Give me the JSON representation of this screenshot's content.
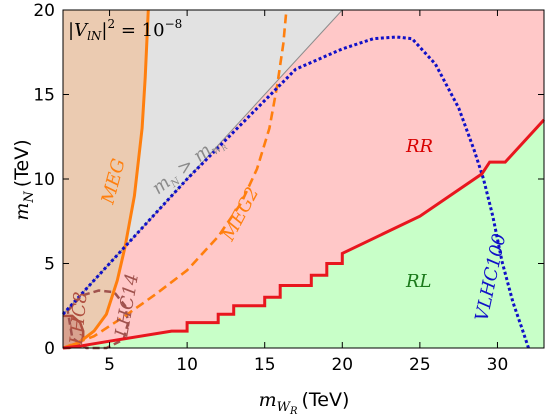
{
  "chart_data": {
    "type": "area",
    "xlim": [
      2,
      33
    ],
    "ylim": [
      0,
      20
    ],
    "xticks": [
      "5",
      "10",
      "15",
      "20",
      "25",
      "30"
    ],
    "yticks": [
      "0",
      "5",
      "10",
      "15",
      "20"
    ],
    "x_tick_values": [
      5,
      10,
      15,
      20,
      25,
      30
    ],
    "y_tick_values": [
      0,
      5,
      10,
      15,
      20
    ],
    "xlabel_main": "m",
    "xlabel_sub_main": "W",
    "xlabel_sub_sub": "R",
    "xlabel_unit": "(TeV)",
    "ylabel_main": "m",
    "ylabel_sub": "N",
    "ylabel_unit": "(TeV)",
    "annotation_mixing": "|V_lN|^2 = 10^-8",
    "annotation_mixing_parts": {
      "v": "|V",
      "sub": "lN",
      "mid": "|",
      "sup2": "2",
      "eq": " = 10",
      "exp": "−8"
    },
    "label_constraint": "m_N > m_W_R",
    "label_constraint_parts": {
      "a": "m",
      "a_sub": "N",
      "gt": " > ",
      "b": "m",
      "b_sub": "W",
      "b_subsub": "R"
    },
    "region_labels": {
      "RR": "RR",
      "RL": "RL"
    },
    "curve_labels": {
      "MEG": "MEG",
      "MEG2": "MEG2",
      "VLHC100": "VLHC100",
      "LHC8": "LHC8",
      "LHC14": "LHC14"
    },
    "colors": {
      "RR_region": "#ffc8c8",
      "RL_region": "#c8ffc8",
      "MEG_region": "#ebcbb1",
      "forbidden_region": "#e2e2e2",
      "boundary": "#e8161e",
      "MEG": "#ff7f0e",
      "VLHC100": "#1010c8",
      "diagonal": "#1010c8",
      "LHC8": "#b05040",
      "LHC14": "#a0524d",
      "RL_text": "#1b7a1b",
      "RR_text": "#d80000"
    },
    "series": [
      {
        "name": "RR/RL boundary",
        "x": [
          2,
          3,
          5,
          9,
          10,
          10,
          12,
          12,
          13,
          13,
          15,
          15,
          16,
          16,
          18,
          18,
          19,
          19,
          20,
          20,
          25,
          29,
          29.5,
          30.5,
          33
        ],
        "y": [
          0,
          0.1,
          0.4,
          1,
          1,
          1.5,
          1.5,
          2,
          2,
          2.5,
          2.5,
          3,
          3,
          3.7,
          3.7,
          4.3,
          4.3,
          5,
          5,
          5.6,
          7.8,
          10.3,
          11,
          11,
          13.5
        ]
      },
      {
        "name": "MEG",
        "x": [
          2,
          3,
          4,
          4.8,
          5.5,
          6.0,
          6.6,
          7.1,
          7.3,
          7.5
        ],
        "y": [
          0,
          0.3,
          1,
          2,
          4,
          6,
          9,
          13,
          16,
          20
        ]
      },
      {
        "name": "MEG2",
        "x": [
          2,
          4,
          6,
          8,
          10,
          12,
          13.5,
          14.5,
          15.3,
          15.8,
          16.2,
          16.4
        ],
        "y": [
          0,
          0.7,
          1.9,
          3.2,
          4.6,
          6.6,
          8.6,
          10.6,
          13,
          15.5,
          18,
          20
        ]
      },
      {
        "name": "VLHC100",
        "x": [
          2,
          10,
          17,
          20,
          22,
          23.5,
          24.5,
          26,
          27.5,
          28.5,
          29.1,
          29.7,
          30.3,
          31,
          31.6,
          32
        ],
        "y": [
          2,
          10,
          16.5,
          17.7,
          18.3,
          18.4,
          18.3,
          16.8,
          14.2,
          11.7,
          10,
          7.8,
          5.1,
          2.7,
          1.1,
          0
        ]
      },
      {
        "name": "LHC8",
        "x": [
          2,
          2.6,
          3.1,
          3.3,
          3.3,
          3.0,
          2.4,
          2
        ],
        "y": [
          1.9,
          1.9,
          1.5,
          1,
          0.6,
          0.2,
          0,
          0
        ]
      },
      {
        "name": "LHC14",
        "x": [
          2.3,
          3.2,
          4.3,
          5.3,
          6.0,
          6.2,
          5.9,
          4.8,
          3.5,
          2.6,
          2.3
        ],
        "y": [
          2.2,
          3.1,
          3.4,
          3.3,
          2.5,
          1.5,
          0.5,
          0,
          0,
          0.6,
          2.2
        ]
      }
    ]
  }
}
